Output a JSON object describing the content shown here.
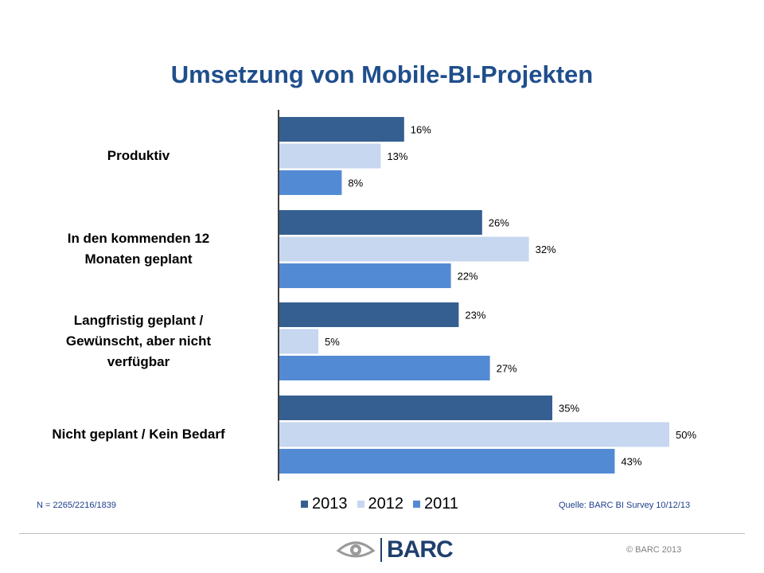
{
  "header": {
    "title": "Umsetzung von Mobile-BI-Projekten"
  },
  "chart_data": {
    "type": "bar",
    "orientation": "horizontal",
    "title": "Umsetzung von Mobile-BI-Projekten",
    "categories": [
      "Produktiv",
      "In den kommenden 12 Monaten geplant",
      "Langfristig geplant / Gewünscht, aber nicht verfügbar",
      "Nicht geplant / Kein Bedarf"
    ],
    "category_lines": [
      [
        "Produktiv"
      ],
      [
        "In den kommenden 12",
        "Monaten geplant"
      ],
      [
        "Langfristig geplant /",
        "Gewünscht, aber nicht",
        "verfügbar"
      ],
      [
        "Nicht geplant / Kein Bedarf"
      ]
    ],
    "series": [
      {
        "name": "2013",
        "color": "#355f91",
        "values": [
          16,
          26,
          23,
          35
        ]
      },
      {
        "name": "2012",
        "color": "#c6d7ef",
        "values": [
          13,
          32,
          5,
          50
        ]
      },
      {
        "name": "2011",
        "color": "#538ad4",
        "values": [
          8,
          22,
          27,
          43
        ]
      }
    ],
    "value_suffix": "%",
    "xlim": [
      0,
      50
    ],
    "legend_position": "bottom",
    "grid": false
  },
  "notes": {
    "sample_size": "N = 2265/2216/1839",
    "source": "Quelle: BARC BI Survey 10/12/13"
  },
  "footer": {
    "logo_text": "BARC",
    "copyright": "© BARC 2013"
  }
}
